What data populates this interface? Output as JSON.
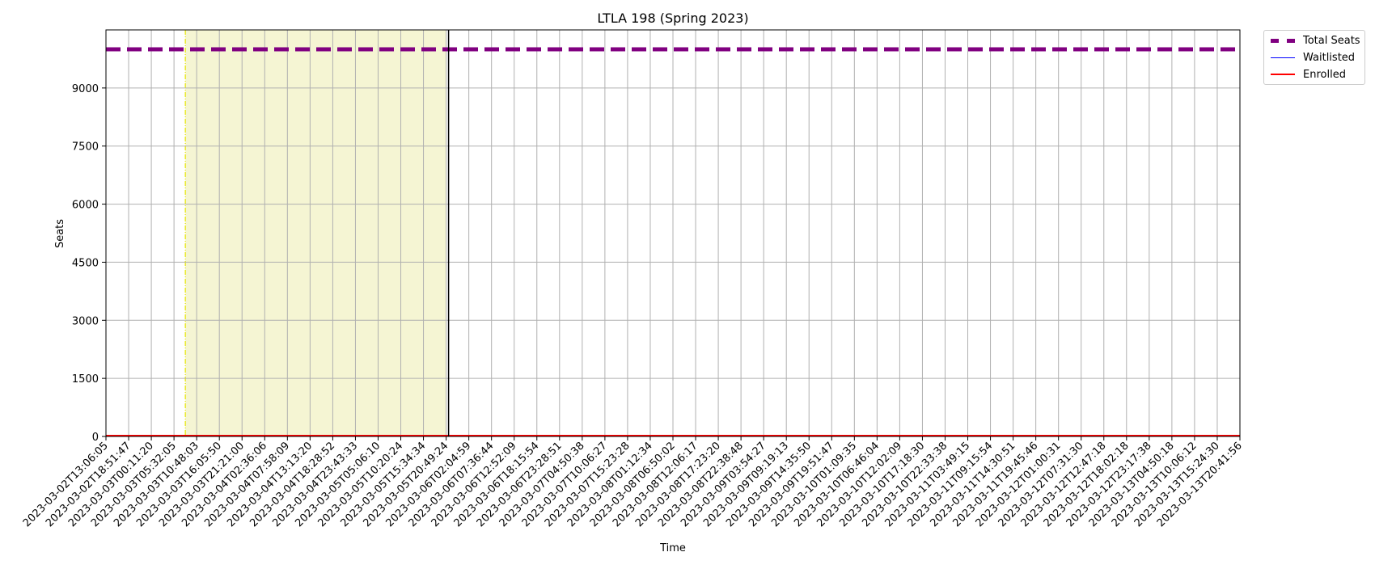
{
  "chart_data": {
    "type": "line",
    "title": "LTLA 198 (Spring 2023)",
    "xlabel": "Time",
    "ylabel": "Seats",
    "ylim": [
      0,
      10500
    ],
    "yticks": [
      0,
      1500,
      3000,
      4500,
      6000,
      7500,
      9000
    ],
    "grid": true,
    "legend_placement": "outside-top-right",
    "x": [
      "2023-03-02T13:06:05",
      "2023-03-02T18:51:47",
      "2023-03-03T00:11:20",
      "2023-03-03T05:32:05",
      "2023-03-03T10:48:03",
      "2023-03-03T16:05:50",
      "2023-03-03T21:21:00",
      "2023-03-04T02:36:06",
      "2023-03-04T07:58:09",
      "2023-03-04T13:13:20",
      "2023-03-04T18:28:52",
      "2023-03-04T23:43:33",
      "2023-03-05T05:06:10",
      "2023-03-05T10:20:24",
      "2023-03-05T15:34:34",
      "2023-03-05T20:49:24",
      "2023-03-06T02:04:59",
      "2023-03-06T07:36:44",
      "2023-03-06T12:52:09",
      "2023-03-06T18:15:54",
      "2023-03-06T23:28:51",
      "2023-03-07T04:50:38",
      "2023-03-07T10:06:27",
      "2023-03-07T15:23:28",
      "2023-03-08T01:12:34",
      "2023-03-08T06:50:02",
      "2023-03-08T12:06:17",
      "2023-03-08T17:23:20",
      "2023-03-08T22:38:48",
      "2023-03-09T03:54:27",
      "2023-03-09T09:19:13",
      "2023-03-09T14:35:50",
      "2023-03-09T19:51:47",
      "2023-03-10T01:09:35",
      "2023-03-10T06:46:04",
      "2023-03-10T12:02:09",
      "2023-03-10T17:18:30",
      "2023-03-10T22:33:38",
      "2023-03-11T03:49:15",
      "2023-03-11T09:15:54",
      "2023-03-11T14:30:51",
      "2023-03-11T19:45:46",
      "2023-03-12T01:00:31",
      "2023-03-12T07:31:30",
      "2023-03-12T12:47:18",
      "2023-03-12T18:02:18",
      "2023-03-12T23:17:38",
      "2023-03-13T04:50:18",
      "2023-03-13T10:06:12",
      "2023-03-13T15:24:30",
      "2023-03-13T20:41:56"
    ],
    "series": [
      {
        "name": "Total Seats",
        "value": 10000,
        "color": "#800080",
        "style": "dashed"
      },
      {
        "name": "Waitlisted",
        "value": 0,
        "color": "#0000ff",
        "style": "solid"
      },
      {
        "name": "Enrolled",
        "value": 0,
        "color": "#ff0000",
        "style": "solid"
      }
    ],
    "highlight_region": {
      "start": "2023-03-03T05:32:05",
      "end": "2023-03-05T20:49:24",
      "color": "#f5f5d3",
      "start_line_color": "#e6e600"
    },
    "marker_line": {
      "x": "2023-03-05T20:49:24",
      "color": "#000000"
    }
  }
}
